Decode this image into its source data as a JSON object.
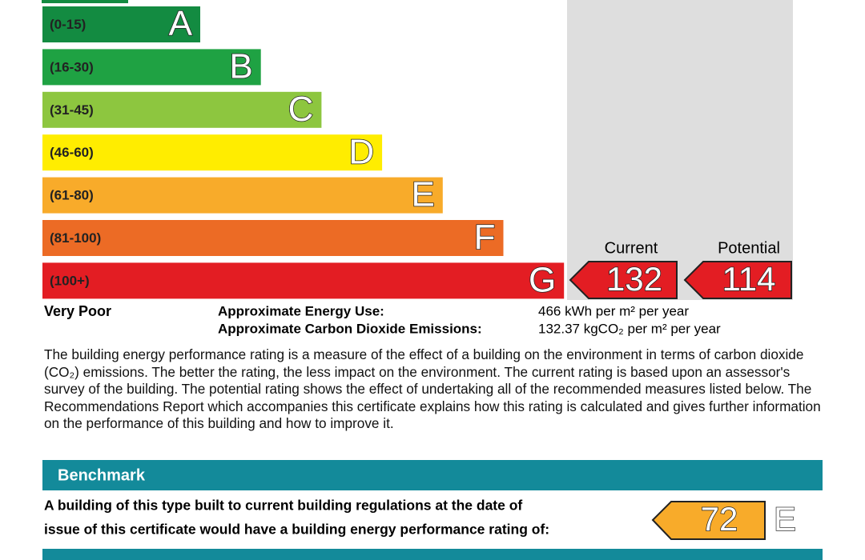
{
  "rating_scale": {
    "bands": [
      {
        "range": "(0-15)",
        "letter": "A",
        "color": "#138b41"
      },
      {
        "range": "(16-30)",
        "letter": "B",
        "color": "#1fa243"
      },
      {
        "range": "(31-45)",
        "letter": "C",
        "color": "#8dc63f"
      },
      {
        "range": "(46-60)",
        "letter": "D",
        "color": "#ffed00"
      },
      {
        "range": "(61-80)",
        "letter": "E",
        "color": "#f8ab2a"
      },
      {
        "range": "(81-100)",
        "letter": "F",
        "color": "#ec6b25"
      },
      {
        "range": "(100+)",
        "letter": "G",
        "color": "#e31d23"
      }
    ],
    "bottom_label": "Very Poor"
  },
  "current": {
    "label": "Current",
    "value": 132
  },
  "potential": {
    "label": "Potential",
    "value": 114
  },
  "energy_use": {
    "label": "Approximate Energy Use:",
    "value": "466 kWh per m² per year"
  },
  "emissions": {
    "label": "Approximate Carbon Dioxide Emissions:",
    "value": "132.37 kgCO₂ per m² per year"
  },
  "description": "The building energy performance rating is a measure of the effect of a building on the environment in terms of carbon dioxide (CO₂) emissions. The better the rating, the less impact on the environment. The current rating is based upon an assessor's survey of the building. The potential rating shows the effect of undertaking all of the recommended measures listed below. The Recommendations Report which accompanies this certificate explains how this rating is calculated and gives further information on the performance of this building and how to improve it.",
  "benchmark": {
    "heading": "Benchmark",
    "text_lines": [
      "A building of this type built to current building regulations at the date of",
      "issue of this certificate would have a building energy performance rating of:"
    ],
    "value": 72,
    "letter": "E"
  }
}
